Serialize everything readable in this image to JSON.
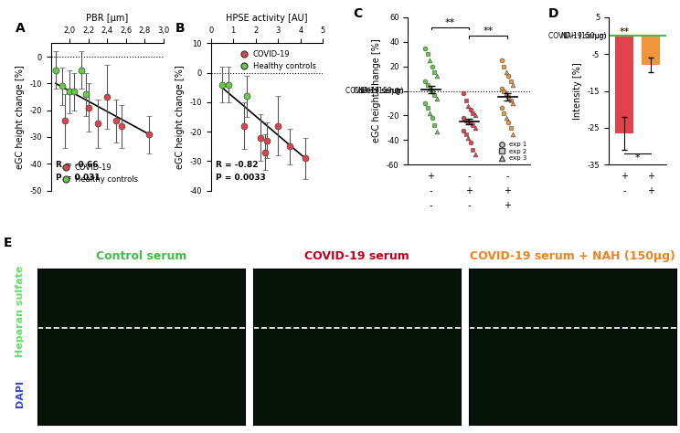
{
  "chart_data": [
    {
      "type": "scatter",
      "title": "A",
      "x_label": "PBR [µm]",
      "y_label": "eGC height change [%]",
      "xlim": [
        1.8,
        3.0
      ],
      "xticks": [
        {
          "value": 2.0,
          "label": "2,0"
        },
        {
          "value": 2.2,
          "label": "2,2"
        },
        {
          "value": 2.4,
          "label": "2,4"
        },
        {
          "value": 2.6,
          "label": "2,6"
        },
        {
          "value": 2.8,
          "label": "2,8"
        },
        {
          "value": 3.0,
          "label": "3,0"
        }
      ],
      "ylim": [
        -50,
        5
      ],
      "yticks": [
        -50,
        -40,
        -30,
        -20,
        -10,
        0
      ],
      "legend": "lower left",
      "annotations": [
        "R = -0.66",
        "P = 0.031"
      ],
      "fit": {
        "x": [
          1.85,
          2.85
        ],
        "y": [
          -10,
          -29
        ]
      },
      "series": [
        {
          "name": "COVID-19",
          "color": "#e0434b",
          "x": [
            1.95,
            2.2,
            2.3,
            2.4,
            2.5,
            2.55,
            2.85
          ],
          "values": [
            -24,
            -19,
            -25,
            -15,
            -24,
            -26,
            -29
          ],
          "errors": [
            10,
            9,
            9,
            12,
            8,
            8,
            7
          ]
        },
        {
          "name": "Healthy controls",
          "color": "#66cc44",
          "x": [
            1.85,
            1.92,
            2.0,
            2.05,
            2.12,
            2.17
          ],
          "values": [
            -5,
            -11,
            -13,
            -13,
            -5,
            -14
          ],
          "errors": [
            7,
            7,
            8,
            7,
            7,
            8
          ]
        }
      ]
    },
    {
      "type": "scatter",
      "title": "B",
      "x_label": "HPSE activity [AU]",
      "y_label": "eGC height change [%]",
      "xlim": [
        0,
        5
      ],
      "xticks": [
        0,
        1,
        2,
        3,
        4,
        5
      ],
      "ylim": [
        -40,
        10
      ],
      "yticks": [
        -40,
        -30,
        -20,
        -10,
        0,
        10
      ],
      "legend": "upper right",
      "annotations": [
        "R = -0.82",
        "P = 0.0033"
      ],
      "fit": {
        "x": [
          0.5,
          4.2
        ],
        "y": [
          -5,
          -29
        ]
      },
      "series": [
        {
          "name": "COVID-19",
          "color": "#e0434b",
          "x": [
            1.5,
            2.2,
            2.4,
            2.5,
            3.0,
            3.5,
            4.2
          ],
          "values": [
            -18,
            -22,
            -27,
            -23,
            -18,
            -25,
            -29
          ],
          "errors": [
            8,
            8,
            6,
            6,
            10,
            6,
            7
          ]
        },
        {
          "name": "Healthy controls",
          "color": "#66cc44",
          "x": [
            0.5,
            0.8,
            1.6
          ],
          "values": [
            -4,
            -4,
            -8
          ],
          "errors": [
            6,
            6,
            7
          ]
        }
      ]
    },
    {
      "type": "dot",
      "title": "C",
      "y_label": "eGC height change [%]",
      "ylim": [
        -60,
        60
      ],
      "yticks": [
        -60,
        -40,
        -20,
        0,
        20,
        40,
        60
      ],
      "tick_labels": "y",
      "legend": "lower right",
      "exp_series": [
        {
          "name": "exp 1",
          "marker": "circle"
        },
        {
          "name": "exp 2",
          "marker": "square"
        },
        {
          "name": "exp 3",
          "marker": "triangle"
        }
      ],
      "groups": [
        {
          "color": "#66cc44",
          "values": [
            35,
            30,
            25,
            20,
            15,
            12,
            8,
            5,
            2,
            0,
            -3,
            -6,
            -10,
            -14,
            -18,
            -22,
            -28,
            -33
          ],
          "exp": [
            1,
            2,
            3,
            1,
            2,
            3,
            1,
            2,
            3,
            1,
            2,
            3,
            1,
            2,
            3,
            1,
            2,
            3
          ],
          "mean": 1,
          "sem": 3
        },
        {
          "color": "#e0434b",
          "values": [
            -2,
            -8,
            -12,
            -15,
            -18,
            -20,
            -22,
            -24,
            -25,
            -26,
            -28,
            -30,
            -32,
            -35,
            -38,
            -42,
            -48,
            -52
          ],
          "exp": [
            1,
            2,
            3,
            1,
            2,
            3,
            1,
            2,
            3,
            1,
            2,
            3,
            1,
            2,
            3,
            1,
            2,
            3
          ],
          "mean": -25,
          "sem": 2.5
        },
        {
          "color": "#f0953a",
          "values": [
            25,
            20,
            15,
            12,
            8,
            5,
            2,
            0,
            -2,
            -5,
            -8,
            -10,
            -14,
            -18,
            -22,
            -26,
            -30,
            -35
          ],
          "exp": [
            1,
            2,
            3,
            1,
            2,
            3,
            1,
            2,
            3,
            1,
            2,
            3,
            1,
            2,
            3,
            1,
            2,
            3
          ],
          "mean": -5,
          "sem": 3
        }
      ],
      "significance": [
        {
          "from": 0,
          "to": 1,
          "y": 52,
          "label": "**"
        },
        {
          "from": 1,
          "to": 2,
          "y": 45,
          "label": "**"
        }
      ],
      "condition_table": [
        {
          "label": "Control serum",
          "marks": [
            "+",
            "-",
            "-"
          ]
        },
        {
          "label": "COVID-19 serum",
          "marks": [
            "-",
            "+",
            "+"
          ]
        },
        {
          "label": "NAH (150µg)",
          "marks": [
            "-",
            "-",
            "+"
          ]
        }
      ]
    },
    {
      "type": "bar",
      "title": "D",
      "y_label": "Intensity [%]",
      "ylim": [
        -35,
        5
      ],
      "yticks": [
        -35,
        -25,
        -15,
        -5,
        5
      ],
      "tick_labels": "y",
      "values": [
        -26.5,
        -8
      ],
      "errors": [
        4.5,
        2
      ],
      "colors": [
        "#e0434b",
        "#f0953a"
      ],
      "significance": [
        {
          "bar": 0,
          "y": 1,
          "label": "**"
        },
        {
          "from": 0,
          "to": 1,
          "y": -32,
          "label": "*"
        }
      ],
      "condition_table": [
        {
          "label": "COVID-19 serum",
          "marks": [
            "+",
            "+"
          ]
        },
        {
          "label": "NAH (150µg)",
          "marks": [
            "-",
            "+"
          ]
        }
      ]
    }
  ],
  "image_panel": {
    "title": "E",
    "columns": [
      {
        "label": "Control serum",
        "color": "#44bb44"
      },
      {
        "label": "COVID-19 serum",
        "color": "#c0001a"
      },
      {
        "label": "COVID-19 serum + NAH (150µg)",
        "color": "#f08020"
      }
    ],
    "channels": [
      {
        "label": "Heparan sulfate",
        "color": "#66dd66"
      },
      {
        "label": "DAPI",
        "color": "#3344cc"
      }
    ]
  }
}
